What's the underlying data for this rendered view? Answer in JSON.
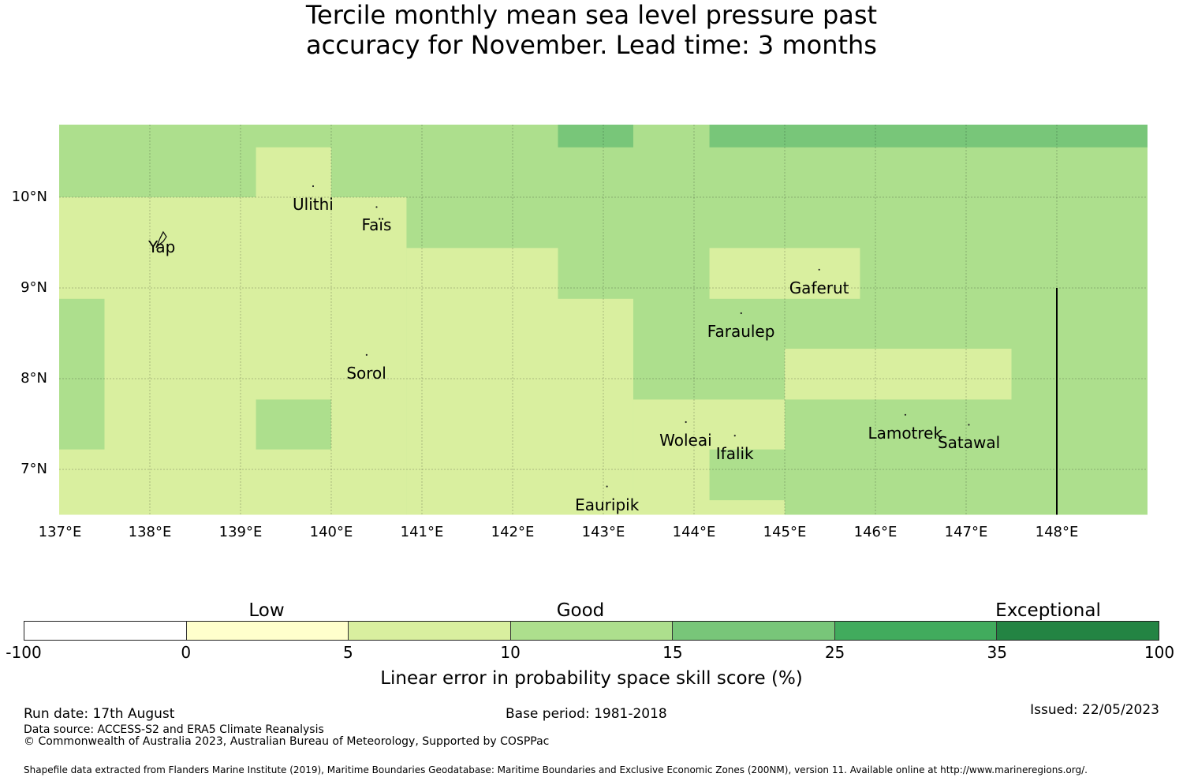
{
  "title": {
    "line1": "Tercile monthly mean sea level pressure past",
    "line2": "accuracy for November. Lead time: 3 months"
  },
  "map": {
    "lon_range": [
      137.0,
      149.0
    ],
    "lat_range": [
      6.5,
      10.8
    ],
    "lat_ticks": [
      "10°N",
      "9°N",
      "8°N",
      "7°N"
    ],
    "lon_ticks": [
      "137°E",
      "138°E",
      "139°E",
      "140°E",
      "141°E",
      "142°E",
      "143°E",
      "144°E",
      "145°E",
      "146°E",
      "147°E",
      "148°E"
    ],
    "gridlines": true,
    "colors": {
      "c5_10": "#d9ef9f",
      "c10_15": "#addf8d",
      "c15_25": "#78c679"
    },
    "cells": [
      {
        "lon": [
          137.0,
          149.0
        ],
        "lat": [
          6.5,
          10.8
        ],
        "class": "c10_15"
      },
      {
        "lon": [
          137.0,
          140.83
        ],
        "lat": [
          6.5,
          10.0
        ],
        "class": "c5_10"
      },
      {
        "lon": [
          140.83,
          142.5
        ],
        "lat": [
          6.5,
          9.44
        ],
        "class": "c5_10"
      },
      {
        "lon": [
          142.5,
          143.33
        ],
        "lat": [
          6.5,
          8.88
        ],
        "class": "c5_10"
      },
      {
        "lon": [
          143.33,
          145.0
        ],
        "lat": [
          6.5,
          7.77
        ],
        "class": "c5_10"
      },
      {
        "lon": [
          139.17,
          140.0
        ],
        "lat": [
          10.0,
          10.55
        ],
        "class": "c5_10"
      },
      {
        "lon": [
          144.17,
          145.83
        ],
        "lat": [
          8.88,
          9.44
        ],
        "class": "c5_10"
      },
      {
        "lon": [
          145.0,
          147.5
        ],
        "lat": [
          7.77,
          8.33
        ],
        "class": "c5_10"
      },
      {
        "lon": [
          137.0,
          137.5
        ],
        "lat": [
          7.22,
          8.88
        ],
        "class": "c10_15"
      },
      {
        "lon": [
          139.17,
          140.0
        ],
        "lat": [
          7.22,
          7.77
        ],
        "class": "c10_15"
      },
      {
        "lon": [
          144.17,
          145.0
        ],
        "lat": [
          6.66,
          7.22
        ],
        "class": "c10_15"
      },
      {
        "lon": [
          142.5,
          143.33
        ],
        "lat": [
          10.55,
          10.8
        ],
        "class": "c15_25"
      },
      {
        "lon": [
          144.17,
          149.0
        ],
        "lat": [
          10.55,
          10.8
        ],
        "class": "c15_25"
      }
    ],
    "boundary_line": {
      "lon": 148.0,
      "lat": [
        6.5,
        9.0
      ]
    },
    "places": [
      {
        "name": "Ulithi",
        "lon": 139.8,
        "lat": 10.0
      },
      {
        "name": "Faïs",
        "lon": 140.5,
        "lat": 9.77
      },
      {
        "name": "Yap",
        "lon": 138.13,
        "lat": 9.53
      },
      {
        "name": "Gaferut",
        "lon": 145.38,
        "lat": 9.08
      },
      {
        "name": "Faraulep",
        "lon": 144.52,
        "lat": 8.6
      },
      {
        "name": "Sorol",
        "lon": 140.39,
        "lat": 8.14
      },
      {
        "name": "Woleai",
        "lon": 143.91,
        "lat": 7.4
      },
      {
        "name": "Ifalik",
        "lon": 144.45,
        "lat": 7.25
      },
      {
        "name": "Lamotrek",
        "lon": 146.33,
        "lat": 7.48
      },
      {
        "name": "Satawal",
        "lon": 147.03,
        "lat": 7.37
      },
      {
        "name": "Eauripik",
        "lon": 143.04,
        "lat": 6.69
      }
    ]
  },
  "legend": {
    "categories": [
      "Low",
      "Good",
      "Exceptional"
    ],
    "ticks": [
      "-100",
      "0",
      "5",
      "10",
      "15",
      "25",
      "35",
      "100"
    ],
    "colors": [
      "#ffffff",
      "#ffffcc",
      "#d9ef9f",
      "#addf8d",
      "#78c679",
      "#41ab5d",
      "#238443"
    ],
    "label": "Linear error in probability space skill score (%)"
  },
  "footer": {
    "run_date": "Run date: 17th August",
    "base_period": "Base period: 1981-2018",
    "issued": "Issued: 22/05/2023",
    "data_source": "Data source: ACCESS-S2 and ERA5 Climate Reanalysis",
    "copyright": "© Commonwealth of Australia 2023, Australian Bureau of Meteorology, Supported by COSPPac",
    "shapefile": "Shapefile data extracted from Flanders Marine Institute (2019), Maritime Boundaries Geodatabase: Maritime Boundaries and Exclusive Economic Zones (200NM), version 11. Available online at http://www.marineregions.org/."
  }
}
